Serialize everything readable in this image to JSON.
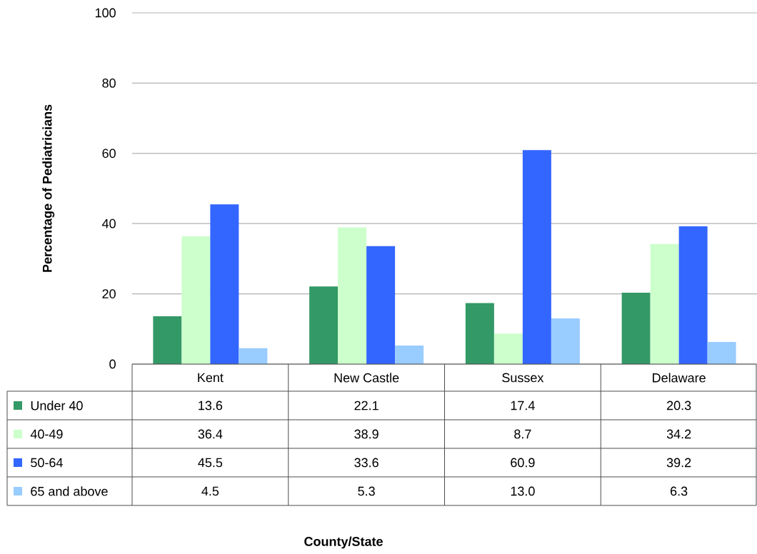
{
  "chart_data": {
    "type": "bar",
    "ylabel": "Percentage of Pediatricians",
    "annotations": [
      "County/State"
    ],
    "categories": [
      "Kent",
      "New Castle",
      "Sussex",
      "Delaware"
    ],
    "series": [
      {
        "name": "Under 40",
        "color": "#339966",
        "values": [
          13.6,
          22.1,
          17.4,
          20.3
        ],
        "value_labels": [
          "13.6",
          "22.1",
          "17.4",
          "20.3"
        ]
      },
      {
        "name": "40-49",
        "color": "#ccffcc",
        "values": [
          36.4,
          38.9,
          8.7,
          34.2
        ],
        "value_labels": [
          "36.4",
          "38.9",
          "8.7",
          "34.2"
        ]
      },
      {
        "name": "50-64",
        "color": "#3366ff",
        "values": [
          45.5,
          33.6,
          60.9,
          39.2
        ],
        "value_labels": [
          "45.5",
          "33.6",
          "60.9",
          "39.2"
        ]
      },
      {
        "name": "65 and above",
        "color": "#99ccff",
        "values": [
          4.5,
          5.3,
          13.0,
          6.3
        ],
        "value_labels": [
          "4.5",
          "5.3",
          "13.0",
          "6.3"
        ]
      }
    ],
    "ylim": [
      0,
      100
    ],
    "yticks": [
      0,
      20,
      40,
      60,
      80,
      100
    ],
    "grid": "y",
    "legend": "bottom"
  }
}
